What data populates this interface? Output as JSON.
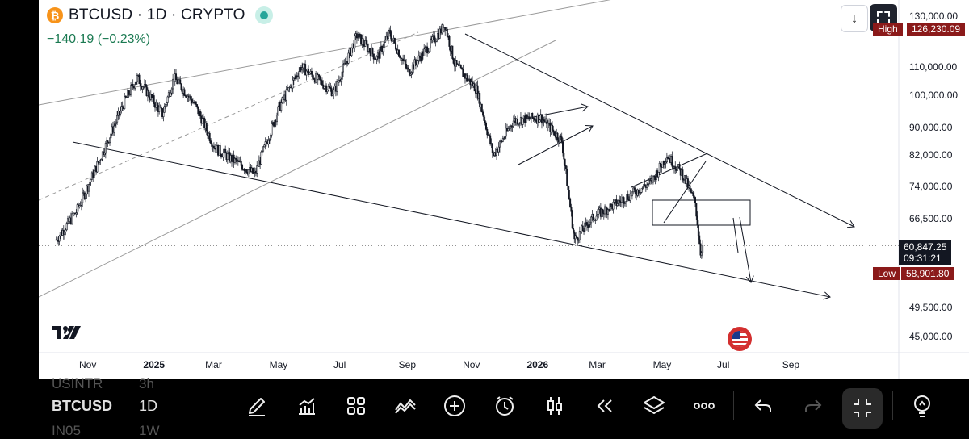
{
  "header": {
    "symbol_title": "BTCUSD · 1D · CRYPTO",
    "change": "−140.19 (−0.23%)",
    "btc_logo": "₿"
  },
  "price_axis": {
    "labels": [
      "130,000.00",
      "110,000.00",
      "100,000.00",
      "90,000.00",
      "82,000.00",
      "74,000.00",
      "66,500.00",
      "49,500.00",
      "45,000.00"
    ],
    "high_label": "High",
    "high_value": "126,230.09",
    "low_label": "Low",
    "low_value": "58,901.80",
    "last_price": "60,847.25",
    "countdown": "09:31:21"
  },
  "time_axis": {
    "labels": [
      "Nov",
      "2025",
      "Mar",
      "May",
      "Jul",
      "Sep",
      "Nov",
      "2026",
      "Mar",
      "May",
      "Jul",
      "Sep"
    ]
  },
  "bottom_bar": {
    "ghost_top": "USINTR",
    "ghost_top_interval": "3h",
    "symbol": "BTCUSD",
    "interval": "1D",
    "ghost_bottom": "IN05",
    "ghost_bottom_interval": "1W",
    "icons": [
      "draw-icon",
      "indicators-icon",
      "layout-icon",
      "compare-icon",
      "add-icon",
      "alert-icon",
      "candles-icon",
      "replay-icon",
      "layers-icon",
      "more-icon",
      "undo-icon",
      "redo-icon",
      "collapse-icon",
      "idea-icon"
    ]
  },
  "colors": {
    "up": "#131722",
    "accent_red": "#8b1a1a",
    "change_green": "#1b7a52",
    "btc_orange": "#f7931a"
  },
  "chart_data": {
    "type": "candlestick",
    "title": "BTCUSD · 1D · CRYPTO",
    "y_scale": "log",
    "ylim": [
      42500,
      134000
    ],
    "x_ticks": [
      "Nov",
      "2025",
      "Mar",
      "May",
      "Jul",
      "Sep",
      "Nov",
      "2026",
      "Mar",
      "May",
      "Jul",
      "Sep"
    ],
    "y_ticks": [
      130000,
      110000,
      100000,
      90000,
      82000,
      74000,
      66500,
      49500,
      45000
    ],
    "high": 126230.09,
    "low": 58901.8,
    "last": 60847.25,
    "price_path": [
      {
        "date": "2024-10-01",
        "price": 62000
      },
      {
        "date": "2024-10-20",
        "price": 68000
      },
      {
        "date": "2024-11-10",
        "price": 80000
      },
      {
        "date": "2024-12-05",
        "price": 98000
      },
      {
        "date": "2024-12-17",
        "price": 106000
      },
      {
        "date": "2025-01-10",
        "price": 94000
      },
      {
        "date": "2025-01-21",
        "price": 106000
      },
      {
        "date": "2025-02-10",
        "price": 97000
      },
      {
        "date": "2025-03-01",
        "price": 84000
      },
      {
        "date": "2025-04-08",
        "price": 77000
      },
      {
        "date": "2025-05-01",
        "price": 96000
      },
      {
        "date": "2025-05-22",
        "price": 110000
      },
      {
        "date": "2025-06-22",
        "price": 101000
      },
      {
        "date": "2025-07-14",
        "price": 122000
      },
      {
        "date": "2025-08-02",
        "price": 113000
      },
      {
        "date": "2025-08-14",
        "price": 123000
      },
      {
        "date": "2025-09-01",
        "price": 108000
      },
      {
        "date": "2025-10-06",
        "price": 126200
      },
      {
        "date": "2025-10-15",
        "price": 111000
      },
      {
        "date": "2025-11-05",
        "price": 102000
      },
      {
        "date": "2025-11-21",
        "price": 82000
      },
      {
        "date": "2025-12-10",
        "price": 92000
      },
      {
        "date": "2026-01-05",
        "price": 93000
      },
      {
        "date": "2026-01-25",
        "price": 86000
      },
      {
        "date": "2026-02-06",
        "price": 62000
      },
      {
        "date": "2026-02-25",
        "price": 67000
      },
      {
        "date": "2026-03-25",
        "price": 71000
      },
      {
        "date": "2026-04-20",
        "price": 75000
      },
      {
        "date": "2026-05-05",
        "price": 82000
      },
      {
        "date": "2026-05-20",
        "price": 77000
      },
      {
        "date": "2026-06-01",
        "price": 70000
      },
      {
        "date": "2026-06-06",
        "price": 59500
      },
      {
        "date": "2026-06-08",
        "price": 60847
      }
    ]
  }
}
